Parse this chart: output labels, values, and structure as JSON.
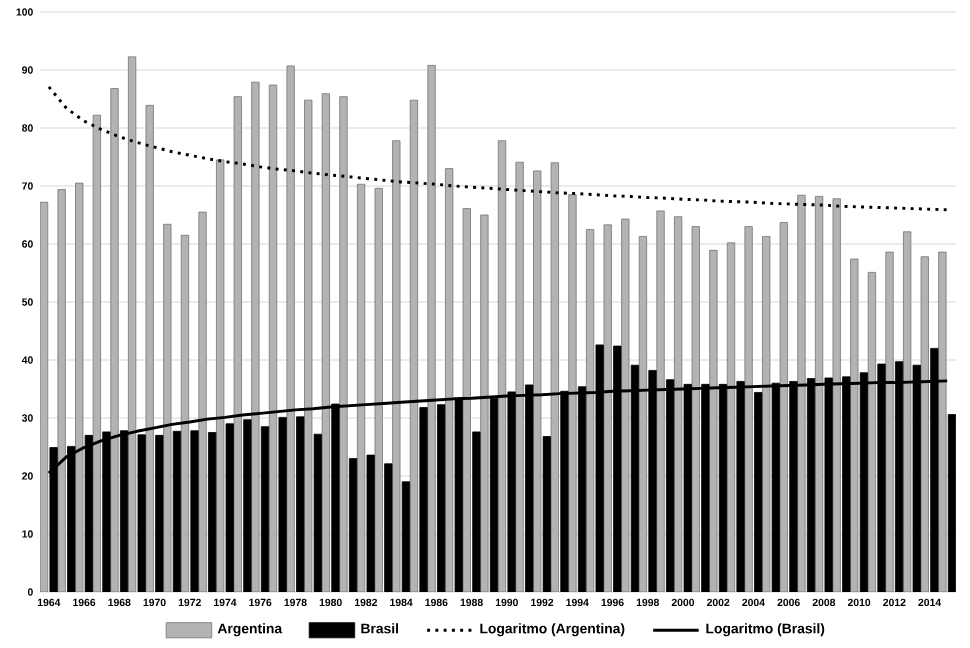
{
  "chart_data": {
    "type": "bar",
    "categories": [
      "1964",
      null,
      "1966",
      null,
      "1968",
      null,
      "1970",
      null,
      "1972",
      null,
      "1974",
      null,
      "1976",
      null,
      "1978",
      null,
      "1980",
      null,
      "1982",
      null,
      "1984",
      null,
      "1986",
      null,
      "1988",
      null,
      "1990",
      null,
      "1992",
      null,
      "1994",
      null,
      "1996",
      null,
      "1998",
      null,
      "2000",
      null,
      "2002",
      null,
      "2004",
      null,
      "2006",
      null,
      "2008",
      null,
      "2010",
      null,
      "2012",
      null,
      "2014",
      null
    ],
    "ylim": [
      0,
      100
    ],
    "yticks": [
      0,
      10,
      20,
      30,
      40,
      50,
      60,
      70,
      80,
      90,
      100
    ],
    "grid": "y",
    "legend": "bottom",
    "series": [
      {
        "name": "Argentina",
        "color": "#b3b3b3",
        "values": [
          67.2,
          69.4,
          70.5,
          82.2,
          86.8,
          92.3,
          83.9,
          63.4,
          61.5,
          65.5,
          74.5,
          85.4,
          87.9,
          87.4,
          90.7,
          84.8,
          85.9,
          85.4,
          70.3,
          69.6,
          77.8,
          84.8,
          90.8,
          73.0,
          66.1,
          65.0,
          77.8,
          74.1,
          72.6,
          74.0,
          68.5,
          62.5,
          63.3,
          64.3,
          61.3,
          65.7,
          64.7,
          63.0,
          58.9,
          60.2,
          63.0,
          61.3,
          63.7,
          68.4,
          68.2,
          67.8,
          57.4,
          55.1,
          58.6,
          62.1,
          57.8,
          58.6
        ]
      },
      {
        "name": "Brasil",
        "color": "#000000",
        "values": [
          24.9,
          25.1,
          27.0,
          27.6,
          27.8,
          27.1,
          27.0,
          27.7,
          27.8,
          27.5,
          29.0,
          29.7,
          28.5,
          30.1,
          30.2,
          27.2,
          32.4,
          23.0,
          23.6,
          22.1,
          19.0,
          31.8,
          32.3,
          33.1,
          27.6,
          33.4,
          34.5,
          35.7,
          26.8,
          34.6,
          35.4,
          42.6,
          42.4,
          39.1,
          38.2,
          36.6,
          35.8,
          35.8,
          35.8,
          36.3,
          34.4,
          36.0,
          36.3,
          36.8,
          36.9,
          37.1,
          37.8,
          39.3,
          39.7,
          39.1,
          42.0,
          30.6
        ]
      },
      {
        "name": "Logaritmo (Argentina)",
        "type": "line",
        "line_style": "dotted",
        "color": "#000000",
        "values": [
          87.1,
          83.4,
          81.2,
          79.7,
          78.5,
          77.5,
          76.7,
          75.9,
          75.3,
          74.7,
          74.2,
          73.8,
          73.3,
          72.9,
          72.6,
          72.2,
          71.9,
          71.6,
          71.3,
          71.0,
          70.7,
          70.5,
          70.3,
          70.0,
          69.8,
          69.6,
          69.4,
          69.2,
          69.0,
          68.8,
          68.7,
          68.5,
          68.3,
          68.2,
          68.0,
          67.9,
          67.7,
          67.6,
          67.4,
          67.3,
          67.2,
          67.0,
          66.9,
          66.8,
          66.7,
          66.5,
          66.4,
          66.3,
          66.2,
          66.1,
          66.0,
          65.9
        ]
      },
      {
        "name": "Logaritmo (Brasil)",
        "type": "line",
        "line_style": "solid",
        "color": "#000000",
        "values": [
          20.5,
          23.3,
          24.9,
          26.1,
          27.0,
          27.7,
          28.3,
          28.9,
          29.3,
          29.8,
          30.1,
          30.5,
          30.8,
          31.1,
          31.4,
          31.6,
          31.9,
          32.1,
          32.3,
          32.5,
          32.7,
          32.9,
          33.1,
          33.3,
          33.4,
          33.6,
          33.8,
          33.9,
          34.0,
          34.2,
          34.3,
          34.4,
          34.6,
          34.7,
          34.8,
          34.9,
          35.0,
          35.1,
          35.2,
          35.3,
          35.4,
          35.5,
          35.6,
          35.7,
          35.8,
          35.9,
          36.0,
          36.1,
          36.1,
          36.2,
          36.3,
          36.4
        ]
      }
    ]
  }
}
